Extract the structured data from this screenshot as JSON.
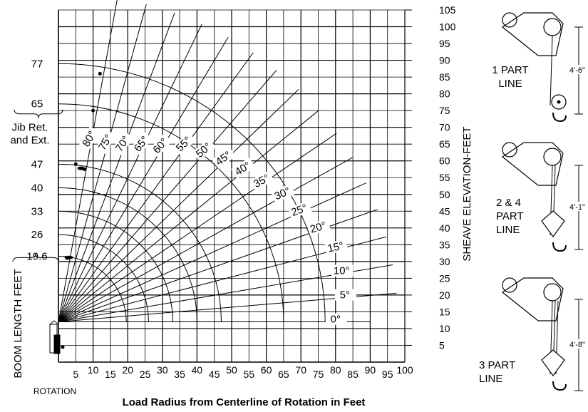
{
  "chart_data": {
    "type": "line",
    "title": "",
    "xlabel": "Load Radius from Centerline of Rotation in Feet",
    "ylabel": "SHEAVE ELEVATION-FEET",
    "x_start_label": "ROTATION",
    "xlim": [
      0,
      100
    ],
    "ylim": [
      0,
      105
    ],
    "grid": true,
    "x_ticks": [
      5,
      10,
      15,
      20,
      25,
      30,
      35,
      40,
      45,
      50,
      55,
      60,
      65,
      70,
      75,
      80,
      85,
      90,
      95,
      100
    ],
    "y_ticks": [
      5,
      10,
      15,
      20,
      25,
      30,
      35,
      40,
      45,
      50,
      55,
      60,
      65,
      70,
      75,
      80,
      85,
      90,
      95,
      100,
      105
    ],
    "boom_angle_lines": [
      {
        "label": "0°",
        "degrees": 0
      },
      {
        "label": "5°",
        "degrees": 5
      },
      {
        "label": "10°",
        "degrees": 10
      },
      {
        "label": "15°",
        "degrees": 15
      },
      {
        "label": "20°",
        "degrees": 20
      },
      {
        "label": "25°",
        "degrees": 25
      },
      {
        "label": "30°",
        "degrees": 30
      },
      {
        "label": "35°",
        "degrees": 35
      },
      {
        "label": "40°",
        "degrees": 40
      },
      {
        "label": "45°",
        "degrees": 45
      },
      {
        "label": "50°",
        "degrees": 50
      },
      {
        "label": "55°",
        "degrees": 55
      },
      {
        "label": "60°",
        "degrees": 60
      },
      {
        "label": "65°",
        "degrees": 65
      },
      {
        "label": "70°",
        "degrees": 70
      },
      {
        "label": "75°",
        "degrees": 75
      },
      {
        "label": "80°",
        "degrees": 80
      }
    ],
    "boom_length_arcs": [
      {
        "label": "77",
        "radius": 77
      },
      {
        "label": "65",
        "radius": 65
      },
      {
        "label": "47",
        "radius": 47
      },
      {
        "label": "40",
        "radius": 40
      },
      {
        "label": "33",
        "radius": 33
      },
      {
        "label": "26",
        "radius": 26
      },
      {
        "label": "19.6",
        "radius": 19.6
      }
    ],
    "boom_axis_label": "BOOM LENGTH FEET",
    "jib_note": "Jib Ret. and Ext."
  },
  "rigging": [
    {
      "label": "1 PART LINE",
      "label_lines": [
        "1 PART",
        "LINE"
      ],
      "dimension": "4'-6\""
    },
    {
      "label": "2 & 4 PART LINE",
      "label_lines": [
        "2 & 4",
        "PART",
        "LINE"
      ],
      "dimension": "4'-1\""
    },
    {
      "label": "3 PART LINE",
      "label_lines": [
        "3 PART",
        "LINE"
      ],
      "dimension": "4'-8\""
    }
  ]
}
